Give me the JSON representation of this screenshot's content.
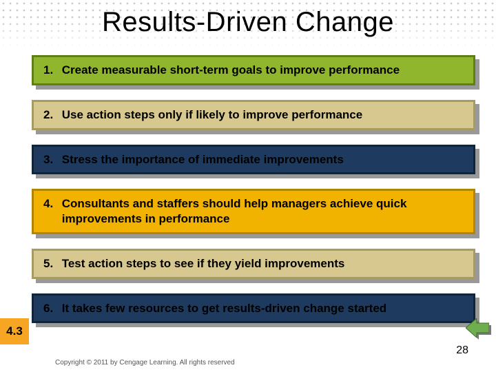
{
  "title": "Results-Driven Change",
  "rows": [
    {
      "num": "1.",
      "text": "Create measurable short-term goals to improve performance",
      "bg": "#8fb62c",
      "border": "#5e7f14",
      "tall": false
    },
    {
      "num": "2.",
      "text": "Use action steps only if likely to improve performance",
      "bg": "#d6c88e",
      "border": "#a89a63",
      "tall": false
    },
    {
      "num": "3.",
      "text": "Stress the importance of immediate improvements",
      "bg": "#1e3a5f",
      "border": "#10253a",
      "tall": false
    },
    {
      "num": "4.",
      "text": "Consultants and staffers should help managers achieve quick improvements in performance",
      "bg": "#f2b200",
      "border": "#b38400",
      "tall": true
    },
    {
      "num": "5.",
      "text": "Test action steps to see if they yield improvements",
      "bg": "#d6c88e",
      "border": "#a89a63",
      "tall": false
    },
    {
      "num": "6.",
      "text": "It takes few resources to get results-driven change started",
      "bg": "#1e3a5f",
      "border": "#10253a",
      "tall": false
    }
  ],
  "corner_label": "4.3",
  "slide_number": "28",
  "copyright": "Copyright © 2011 by Cengage Learning. All rights reserved",
  "arrow": {
    "fill": "#6fae4f",
    "stroke": "#3f6f2a",
    "shadow": "#7a7a7a"
  }
}
